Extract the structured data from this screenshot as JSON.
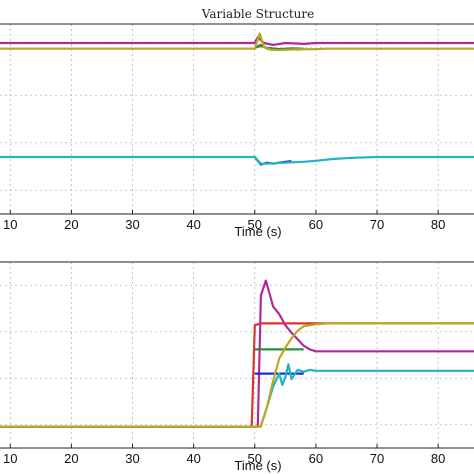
{
  "chart_data": [
    {
      "type": "line",
      "title": "Variable Structure",
      "xlabel": "Time (s)",
      "xlim": [
        7.5,
        87.5
      ],
      "ylim": [
        0,
        1
      ],
      "x_ticks": [
        10,
        20,
        30,
        40,
        50,
        60,
        70,
        80
      ],
      "y_ticks": [
        0.125,
        0.375,
        0.625,
        0.875
      ],
      "grid": true,
      "series": [
        {
          "color": "#b0289f",
          "points": [
            [
              7.5,
              0.9
            ],
            [
              50,
              0.9
            ],
            [
              50.5,
              0.93
            ],
            [
              51.5,
              0.9
            ],
            [
              53,
              0.89
            ],
            [
              55,
              0.9
            ],
            [
              58,
              0.895
            ],
            [
              60,
              0.9
            ],
            [
              87.5,
              0.9
            ]
          ]
        },
        {
          "color": "#d0392b",
          "points": [
            [
              50,
              0.875
            ],
            [
              51,
              0.89
            ],
            [
              52,
              0.87
            ],
            [
              54,
              0.865
            ],
            [
              55.5,
              0.87
            ],
            [
              57,
              0.865
            ],
            [
              58,
              0.87
            ]
          ]
        },
        {
          "color": "#2b8a3e",
          "points": [
            [
              50,
              0.875
            ],
            [
              51,
              0.885
            ],
            [
              52,
              0.875
            ],
            [
              54,
              0.868
            ],
            [
              56,
              0.872
            ],
            [
              58,
              0.87
            ]
          ]
        },
        {
          "color": "#b8aa1e",
          "points": [
            [
              7.5,
              0.87
            ],
            [
              50,
              0.87
            ],
            [
              50.8,
              0.95
            ],
            [
              51.5,
              0.88
            ],
            [
              52.5,
              0.865
            ],
            [
              54,
              0.862
            ],
            [
              56,
              0.866
            ],
            [
              60,
              0.868
            ],
            [
              62,
              0.87
            ],
            [
              87.5,
              0.87
            ]
          ]
        },
        {
          "color": "#1c2fd0",
          "points": [
            [
              50,
              0.3
            ],
            [
              51,
              0.26
            ],
            [
              52,
              0.27
            ],
            [
              53,
              0.265
            ],
            [
              54,
              0.27
            ],
            [
              55,
              0.275
            ],
            [
              56,
              0.278
            ]
          ]
        },
        {
          "color": "#22b3c9",
          "points": [
            [
              7.5,
              0.3
            ],
            [
              50,
              0.3
            ],
            [
              51,
              0.265
            ],
            [
              52,
              0.265
            ],
            [
              55,
              0.27
            ],
            [
              58,
              0.275
            ],
            [
              60,
              0.28
            ],
            [
              63,
              0.29
            ],
            [
              66,
              0.296
            ],
            [
              70,
              0.3
            ],
            [
              87.5,
              0.3
            ]
          ]
        }
      ]
    },
    {
      "type": "line",
      "xlabel": "Time (s)",
      "xlim": [
        7.5,
        87.5
      ],
      "ylim": [
        0,
        1
      ],
      "x_ticks": [
        10,
        20,
        30,
        40,
        50,
        60,
        70,
        80
      ],
      "y_ticks": [
        0.125,
        0.375,
        0.625,
        0.875
      ],
      "grid": true,
      "series": [
        {
          "color": "#b0289f",
          "points": [
            [
              7.5,
              0.115
            ],
            [
              50.5,
              0.115
            ],
            [
              51,
              0.82
            ],
            [
              51.8,
              0.9
            ],
            [
              52.5,
              0.82
            ],
            [
              53,
              0.76
            ],
            [
              54,
              0.72
            ],
            [
              55,
              0.66
            ],
            [
              56,
              0.62
            ],
            [
              58,
              0.55
            ],
            [
              59,
              0.53
            ],
            [
              60,
              0.52
            ],
            [
              87.5,
              0.52
            ]
          ]
        },
        {
          "color": "#d0392b",
          "points": [
            [
              7.5,
              0.115
            ],
            [
              49.5,
              0.115
            ],
            [
              50,
              0.66
            ],
            [
              51,
              0.67
            ],
            [
              57,
              0.67
            ],
            [
              62,
              0.67
            ],
            [
              87.5,
              0.67
            ]
          ]
        },
        {
          "color": "#2b8a3e",
          "points": [
            [
              50,
              0.53
            ],
            [
              58,
              0.53
            ]
          ]
        },
        {
          "color": "#1c2fd0",
          "points": [
            [
              50,
              0.4
            ],
            [
              58,
              0.4
            ]
          ]
        },
        {
          "color": "#22b3c9",
          "points": [
            [
              51,
              0.12
            ],
            [
              52,
              0.22
            ],
            [
              53,
              0.33
            ],
            [
              54,
              0.4
            ],
            [
              54.5,
              0.34
            ],
            [
              55,
              0.38
            ],
            [
              55.5,
              0.45
            ],
            [
              56,
              0.37
            ],
            [
              57,
              0.42
            ],
            [
              58,
              0.41
            ],
            [
              59,
              0.42
            ],
            [
              60,
              0.415
            ],
            [
              87.5,
              0.415
            ]
          ]
        },
        {
          "color": "#b8aa1e",
          "points": [
            [
              7.5,
              0.115
            ],
            [
              51,
              0.115
            ],
            [
              52,
              0.22
            ],
            [
              53,
              0.36
            ],
            [
              54,
              0.48
            ],
            [
              55,
              0.54
            ],
            [
              56,
              0.59
            ],
            [
              57,
              0.63
            ],
            [
              58,
              0.655
            ],
            [
              60,
              0.665
            ],
            [
              62,
              0.67
            ],
            [
              87.5,
              0.67
            ]
          ]
        }
      ]
    }
  ]
}
